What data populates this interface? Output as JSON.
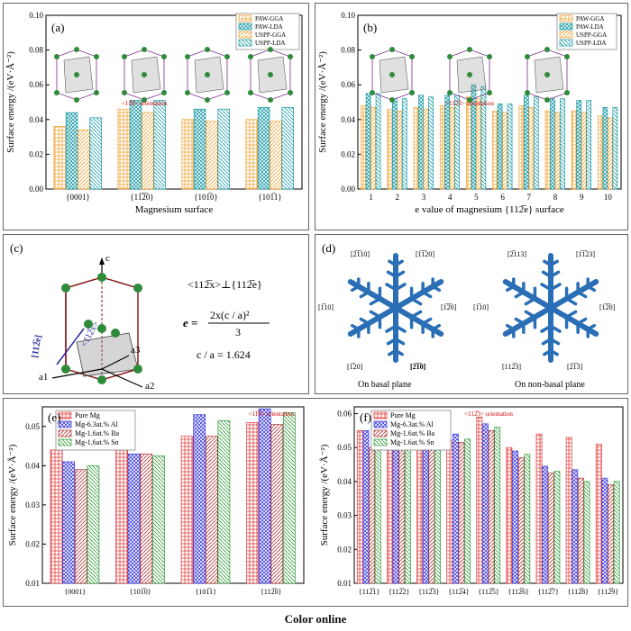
{
  "caption": "Color online",
  "panels": {
    "a": {
      "tag": "(a)",
      "ylabel": "Surface energy /(eV·Å⁻²)",
      "xlabel": "Magnesium surface",
      "inset_note": "<11̅0> orientation"
    },
    "b": {
      "tag": "(b)",
      "ylabel": "Surface energy /(eV·Å⁻²)",
      "xlabel": "e value of magnesium {112̅e} surface",
      "inset_note": "<112̅3> orientation"
    },
    "c": {
      "tag": "(c)",
      "axis_c": "c",
      "axis_a1": "a1",
      "axis_a2": "a2",
      "axis_a3": "a3",
      "plane": "[112̅e]",
      "dir": "<112̅x>",
      "eq1": "<112̅x>⊥{112̅e}",
      "eq2_lhs": "e =",
      "eq2_num": "2x(c / a)²",
      "eq2_den": "3",
      "eq3": "c / a = 1.624"
    },
    "d": {
      "tag": "(d)",
      "left_label": "On basal plane",
      "right_label": "On non-basal plane",
      "left_dirs": [
        "[2̅1̅10]",
        "[1̅2̅0]",
        "[1̅1̅20]",
        "[1̅20]",
        "[1̅10]",
        "[2̅1̅0]"
      ],
      "right_dirs": [
        "[2̅113]",
        "[1̅1̅23]",
        "[1̅10]",
        "[1̅2̅0]",
        "[112̅3]",
        "[2̅1̅3]"
      ]
    },
    "e": {
      "tag": "(e)",
      "ylabel": "Surface energy /(eV·Å⁻²)",
      "note": "<11̅0> orientation"
    },
    "f": {
      "tag": "(f)",
      "ylabel": "Surface energy /(eV·Å⁻²)",
      "note": "<112̅3> orientation"
    }
  },
  "chart_data": [
    {
      "id": "a",
      "type": "bar",
      "categories": [
        "{0001}",
        "{11̅2̅0}",
        "{101̅0}",
        "{101̅1}"
      ],
      "series": [
        {
          "name": "PAW-GGA",
          "values": [
            0.036,
            0.046,
            0.04,
            0.04
          ]
        },
        {
          "name": "PAW-LDA",
          "values": [
            0.044,
            0.051,
            0.046,
            0.047
          ]
        },
        {
          "name": "USPP-GGA",
          "values": [
            0.034,
            0.044,
            0.039,
            0.039
          ]
        },
        {
          "name": "USPP-LDA",
          "values": [
            0.041,
            0.051,
            0.046,
            0.047
          ]
        }
      ],
      "ylabel": "Surface energy /(eV·Å⁻²)",
      "xlabel": "Magnesium surface",
      "ylim": [
        0,
        0.1
      ],
      "yticks": [
        0.0,
        0.02,
        0.04,
        0.06,
        0.08,
        0.1
      ],
      "legend": "top-right"
    },
    {
      "id": "b",
      "type": "bar",
      "categories": [
        "1",
        "2",
        "3",
        "4",
        "5",
        "6",
        "7",
        "8",
        "9",
        "10"
      ],
      "series": [
        {
          "name": "PAW-GGA",
          "values": [
            0.048,
            0.046,
            0.047,
            0.048,
            0.053,
            0.045,
            0.048,
            0.045,
            0.045,
            0.042
          ]
        },
        {
          "name": "PAW-LDA",
          "values": [
            0.055,
            0.052,
            0.054,
            0.054,
            0.06,
            0.049,
            0.054,
            0.052,
            0.051,
            0.047
          ]
        },
        {
          "name": "USPP-GGA",
          "values": [
            0.047,
            0.045,
            0.046,
            0.047,
            0.052,
            0.044,
            0.047,
            0.044,
            0.044,
            0.041
          ]
        },
        {
          "name": "USPP-LDA",
          "values": [
            0.055,
            0.052,
            0.053,
            0.054,
            0.059,
            0.049,
            0.053,
            0.052,
            0.051,
            0.047
          ]
        }
      ],
      "ylabel": "Surface energy /(eV·Å⁻²)",
      "xlabel": "e value of magnesium {112̅e} surface",
      "ylim": [
        0,
        0.1
      ],
      "yticks": [
        0.0,
        0.02,
        0.04,
        0.06,
        0.08,
        0.1
      ],
      "legend": "top-right"
    },
    {
      "id": "e",
      "type": "bar",
      "categories": [
        "{0001}",
        "{101̅0}",
        "{101̅1}",
        "{112̅0}"
      ],
      "series": [
        {
          "name": "Pure Mg",
          "values": [
            0.044,
            0.046,
            0.0475,
            0.051
          ]
        },
        {
          "name": "Mg-6.3at.% Al",
          "values": [
            0.041,
            0.043,
            0.053,
            0.0545
          ]
        },
        {
          "name": "Mg-1.6at.% Ba",
          "values": [
            0.039,
            0.043,
            0.0475,
            0.0505
          ]
        },
        {
          "name": "Mg-1.6at.% Sn",
          "values": [
            0.04,
            0.0425,
            0.0515,
            0.0535
          ]
        }
      ],
      "ylabel": "Surface energy /(eV·Å⁻²)",
      "ylim": [
        0.01,
        0.055
      ],
      "yticks": [
        0.01,
        0.02,
        0.03,
        0.04,
        0.05
      ],
      "legend": "top-left"
    },
    {
      "id": "f",
      "type": "bar",
      "categories": [
        "{112̅1}",
        "{112̅2}",
        "{112̅3}",
        "{112̅4}",
        "{112̅5}",
        "{112̅6}",
        "{112̅7}",
        "{112̅8}",
        "{112̅9}"
      ],
      "series": [
        {
          "name": "Pure Mg",
          "values": [
            0.055,
            0.0515,
            0.054,
            0.052,
            0.059,
            0.05,
            0.054,
            0.053,
            0.051
          ]
        },
        {
          "name": "Mg-6.3at.% Al",
          "values": [
            0.055,
            0.0555,
            0.055,
            0.054,
            0.057,
            0.049,
            0.0445,
            0.0435,
            0.041
          ]
        },
        {
          "name": "Mg-1.6at.% Ba",
          "values": [
            0.05,
            0.0525,
            0.053,
            0.0515,
            0.055,
            0.047,
            0.0425,
            0.041,
            0.039
          ]
        },
        {
          "name": "Mg-1.6at.% Sn",
          "values": [
            0.052,
            0.054,
            0.0535,
            0.0525,
            0.056,
            0.048,
            0.043,
            0.04,
            0.04
          ]
        }
      ],
      "ylabel": "Surface energy /(eV·Å⁻²)",
      "ylim": [
        0.01,
        0.062
      ],
      "yticks": [
        0.01,
        0.02,
        0.03,
        0.04,
        0.05,
        0.06
      ],
      "legend": "top-left"
    }
  ],
  "styles": {
    "ab_colors": [
      "#f0a030",
      "#1a9aa6",
      "#f0a030",
      "#1a9aa6"
    ],
    "ef_colors": [
      "#e33a3a",
      "#3d3de0",
      "#b03030",
      "#2f9a3a"
    ]
  }
}
